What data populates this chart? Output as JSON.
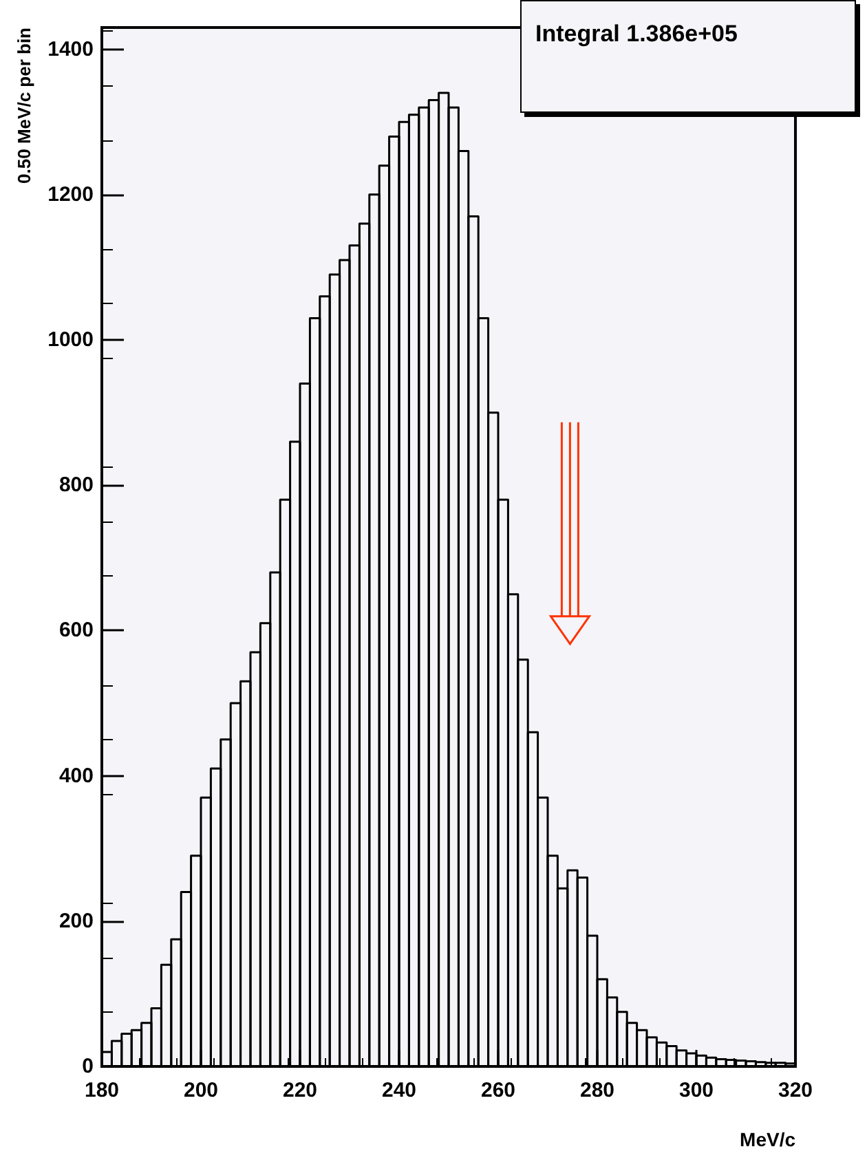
{
  "chart_data": {
    "type": "histogram",
    "xlabel": "MeV/c",
    "ylabel": "0.50 MeV/c per bin",
    "annotations": [
      "Integral 1.386e+05"
    ],
    "color": "#000000",
    "bins": [
      180,
      182,
      184,
      186,
      188,
      190,
      192,
      194,
      196,
      198,
      200,
      202,
      204,
      206,
      208,
      210,
      212,
      214,
      216,
      218,
      220,
      222,
      224,
      226,
      228,
      230,
      232,
      234,
      236,
      238,
      240,
      242,
      244,
      246,
      248,
      250,
      252,
      254,
      256,
      258,
      260,
      262,
      264,
      266,
      268,
      270,
      272,
      274,
      276,
      278,
      280,
      282,
      284,
      286,
      288,
      290,
      292,
      294,
      296,
      298,
      300,
      302,
      304,
      306,
      308,
      310,
      312,
      314,
      316,
      318,
      320
    ],
    "values": [
      20,
      35,
      45,
      50,
      60,
      80,
      140,
      175,
      240,
      290,
      370,
      410,
      450,
      500,
      530,
      570,
      610,
      680,
      780,
      860,
      940,
      1030,
      1060,
      1090,
      1110,
      1130,
      1160,
      1200,
      1240,
      1280,
      1300,
      1310,
      1320,
      1330,
      1340,
      1320,
      1260,
      1170,
      1030,
      900,
      780,
      650,
      560,
      460,
      370,
      290,
      245,
      270,
      260,
      180,
      120,
      95,
      75,
      60,
      50,
      40,
      33,
      28,
      22,
      18,
      15,
      12,
      10,
      9,
      8,
      7,
      6,
      5,
      5,
      4
    ],
    "xlim": [
      180,
      320
    ],
    "xticks": [
      180,
      200,
      220,
      240,
      260,
      280,
      300,
      320
    ],
    "ylim": [
      0,
      1430
    ],
    "yticks": [
      0,
      200,
      400,
      600,
      800,
      1000,
      1200,
      1400
    ]
  }
}
